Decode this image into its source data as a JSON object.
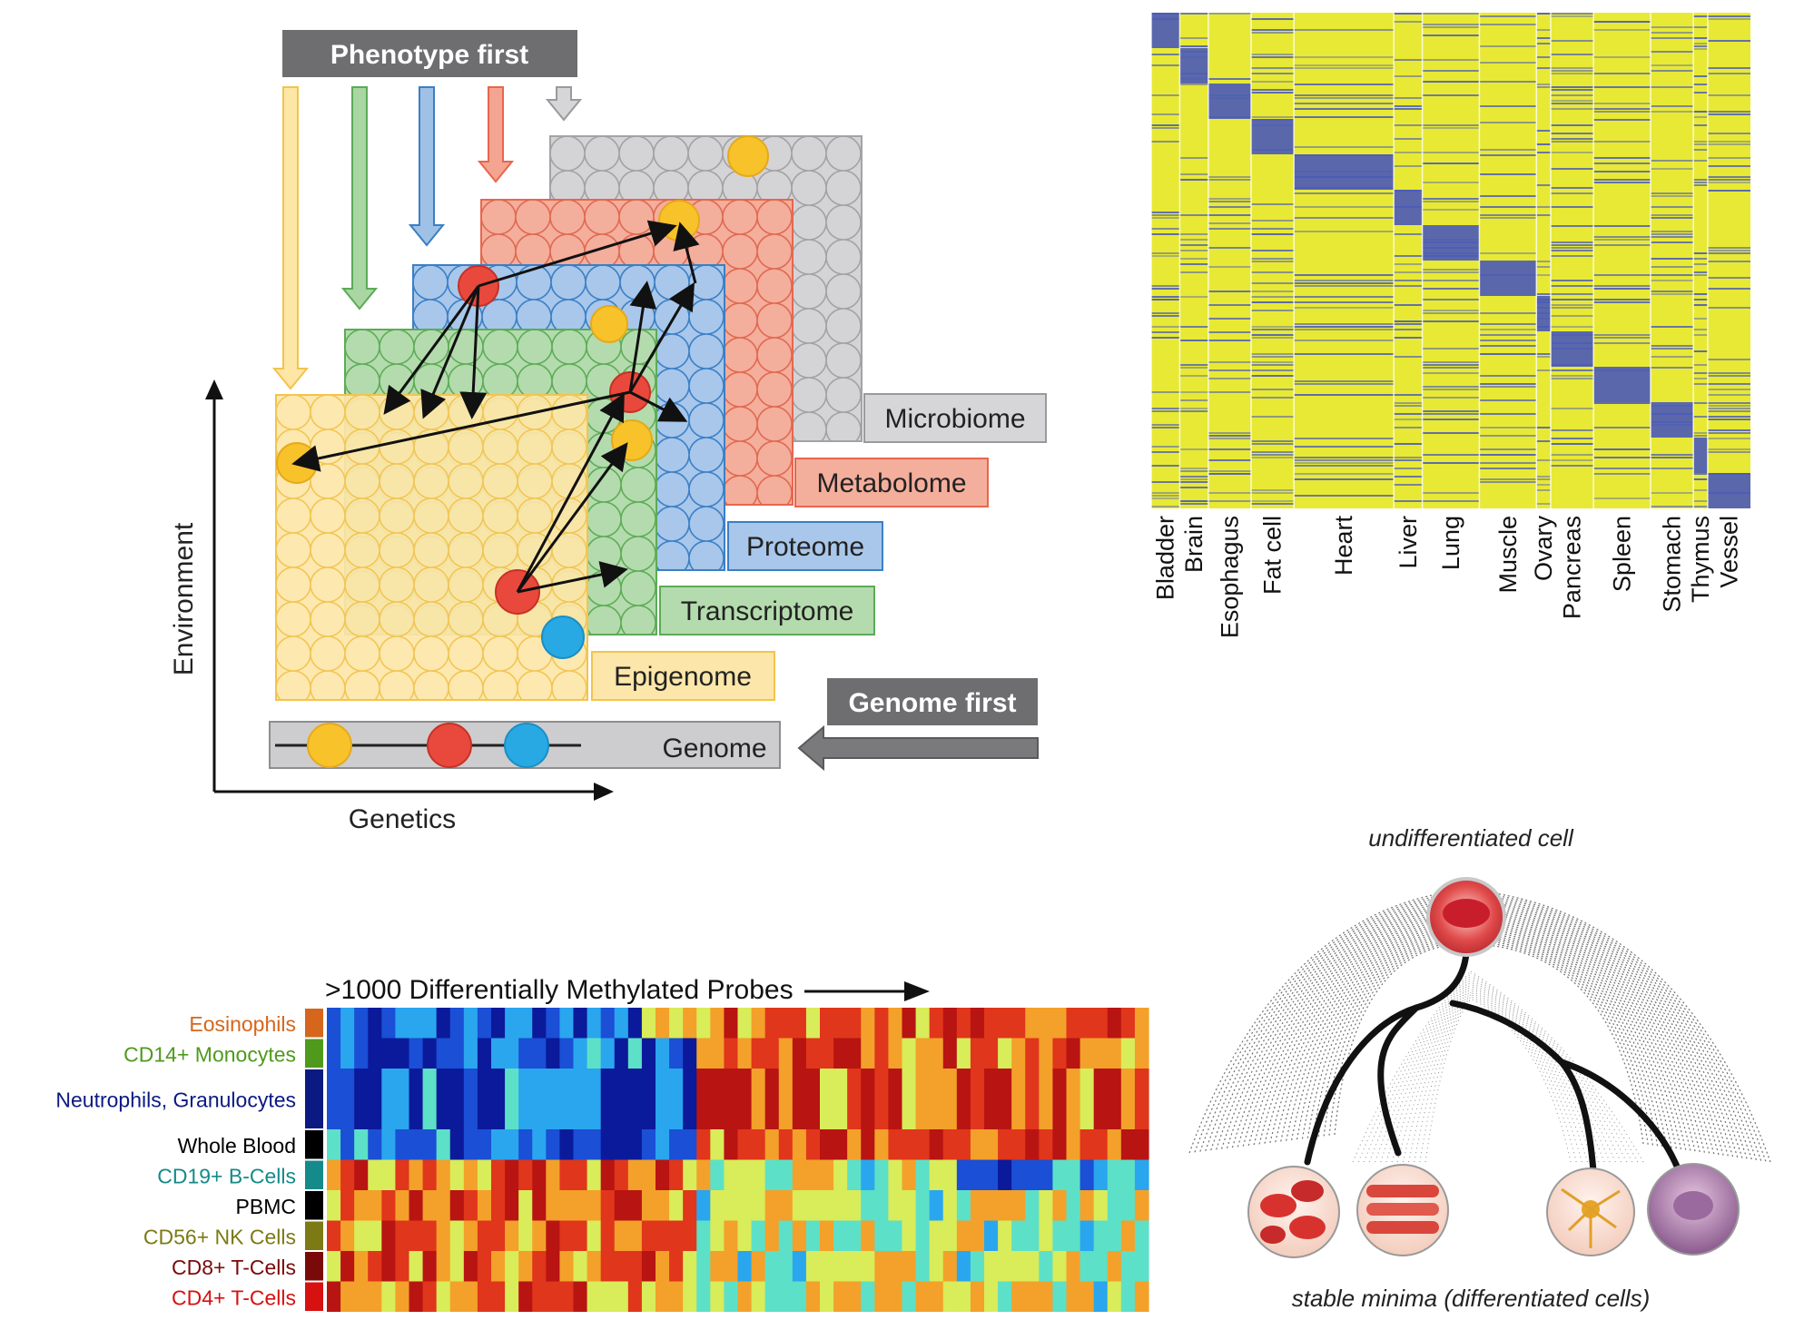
{
  "multiomics": {
    "phenotype_first": "Phenotype first",
    "genome_first": "Genome first",
    "axis_y": "Environment",
    "axis_x": "Genetics",
    "layers": [
      {
        "label": "Microbiome",
        "color": "#c9c9cb",
        "border": "#9a9a9c"
      },
      {
        "label": "Metabolome",
        "color": "#f3a591",
        "border": "#e8664d"
      },
      {
        "label": "Proteome",
        "color": "#9fc1e6",
        "border": "#3b7fc5"
      },
      {
        "label": "Transcriptome",
        "color": "#a9d6a2",
        "border": "#5cab57"
      },
      {
        "label": "Epigenome",
        "color": "#fde2a0",
        "border": "#f3c34f"
      },
      {
        "label": "Genome",
        "color": "#cdcdcf",
        "border": "#8e8e90"
      }
    ],
    "marker_colors": {
      "yellow": "#f8c22b",
      "red": "#e9493d",
      "blue": "#29a9e3"
    }
  },
  "tissue_heatmap": {
    "tissues": [
      "Bladder",
      "Brain",
      "Esophagus",
      "Fat cell",
      "Heart",
      "Liver",
      "Lung",
      "Muscle",
      "Ovary",
      "Pancreas",
      "Spleen",
      "Stomach",
      "Thymus",
      "Vessel"
    ],
    "high_color": "#e8e935",
    "low_color": "#4a5ab8"
  },
  "methylation": {
    "title": ">1000 Differentially Methylated Probes",
    "rows": [
      {
        "label": "Eosinophils",
        "color": "#d5661c"
      },
      {
        "label": "CD14+ Monocytes",
        "color": "#4f9a1d"
      },
      {
        "label": "Neutrophils, Granulocytes",
        "color": "#0b1a82"
      },
      {
        "label": "Whole Blood",
        "color": "#000000"
      },
      {
        "label": "CD19+ B-Cells",
        "color": "#148a8a"
      },
      {
        "label": "PBMC",
        "color": "#000000"
      },
      {
        "label": "CD56+ NK Cells",
        "color": "#7c7a14"
      },
      {
        "label": "CD8+ T-Cells",
        "color": "#7a0a0a"
      },
      {
        "label": "CD4+ T-Cells",
        "color": "#d71010"
      }
    ]
  },
  "landscape": {
    "top_label": "undifferentiated cell",
    "bottom_label": "stable minima (differentiated cells)"
  }
}
